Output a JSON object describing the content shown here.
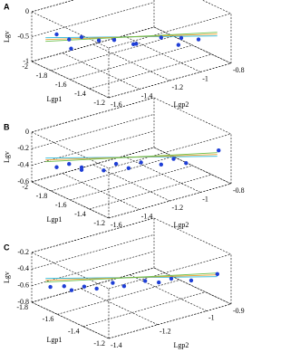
{
  "chart_data": [
    {
      "type": "scatter3d",
      "label": "A",
      "zlabel": "Lgv",
      "xlabel": "Lgp1",
      "ylabel": "Lgp2",
      "color": "#1f3fd6",
      "xlim": [
        -2,
        -1.2
      ],
      "ylim": [
        -1.6,
        -0.8
      ],
      "zlim": [
        -1,
        0
      ],
      "xticks": [
        -2,
        -1.8,
        -1.6,
        -1.4,
        -1.2
      ],
      "yticks": [
        -1.6,
        -1.4,
        -1.2,
        -1,
        -0.8
      ],
      "zticks": [
        -1,
        -0.5,
        0
      ],
      "x": [
        -1.9,
        -1.85,
        -1.8,
        -1.75,
        -1.7,
        -1.62,
        -1.55,
        -1.5,
        -1.45,
        -1.4,
        -1.35,
        -1.3
      ],
      "y": [
        -1.5,
        -1.45,
        -1.4,
        -1.5,
        -1.35,
        -1.3,
        -1.2,
        -1.25,
        -1.1,
        -1.0,
        -1.05,
        -0.95
      ],
      "z": [
        -0.45,
        -0.55,
        -0.5,
        -0.6,
        -0.52,
        -0.48,
        -0.58,
        -0.5,
        -0.45,
        -0.5,
        -0.55,
        -0.48
      ]
    },
    {
      "type": "scatter3d",
      "label": "B",
      "zlabel": "Lgv",
      "xlabel": "Lgp1",
      "ylabel": "Lgp2",
      "color": "#1f3fd6",
      "xlim": [
        -2,
        -1.2
      ],
      "ylim": [
        -1.6,
        -0.8
      ],
      "zlim": [
        -0.6,
        0
      ],
      "xticks": [
        -2,
        -1.8,
        -1.6,
        -1.4,
        -1.2
      ],
      "yticks": [
        -1.6,
        -1.4,
        -1.2,
        -1,
        -0.8
      ],
      "zticks": [
        -0.6,
        -0.4,
        -0.2,
        0
      ],
      "x": [
        -1.9,
        -1.85,
        -1.8,
        -1.72,
        -1.65,
        -1.6,
        -1.55,
        -1.5,
        -1.45,
        -1.4,
        -1.35,
        -1.25
      ],
      "y": [
        -1.5,
        -1.45,
        -1.4,
        -1.45,
        -1.35,
        -1.3,
        -1.25,
        -1.2,
        -1.1,
        -1.05,
        -1.0,
        -0.85
      ],
      "z": [
        -0.42,
        -0.38,
        -0.45,
        -0.35,
        -0.4,
        -0.32,
        -0.37,
        -0.3,
        -0.35,
        -0.28,
        -0.33,
        -0.2
      ]
    },
    {
      "type": "scatter3d",
      "label": "C",
      "zlabel": "Lgv",
      "xlabel": "Lgp1",
      "ylabel": "Lgp2",
      "color": "#1f3fd6",
      "xlim": [
        -1.8,
        -1.2
      ],
      "ylim": [
        -1.4,
        -0.9
      ],
      "zlim": [
        -0.8,
        -0.2
      ],
      "xticks": [
        -1.8,
        -1.6,
        -1.4,
        -1.2
      ],
      "yticks": [
        -1.4,
        -1.2,
        -1,
        -0.9
      ],
      "zticks": [
        -0.8,
        -0.6,
        -0.4,
        -0.2
      ],
      "x": [
        -1.75,
        -1.7,
        -1.68,
        -1.62,
        -1.58,
        -1.55,
        -1.5,
        -1.45,
        -1.42,
        -1.38,
        -1.32,
        -1.25
      ],
      "y": [
        -1.35,
        -1.32,
        -1.3,
        -1.28,
        -1.25,
        -1.2,
        -1.18,
        -1.12,
        -1.08,
        -1.05,
        -1.0,
        -0.93
      ],
      "z": [
        -0.62,
        -0.6,
        -0.65,
        -0.58,
        -0.6,
        -0.55,
        -0.57,
        -0.52,
        -0.55,
        -0.5,
        -0.52,
        -0.45
      ]
    }
  ]
}
